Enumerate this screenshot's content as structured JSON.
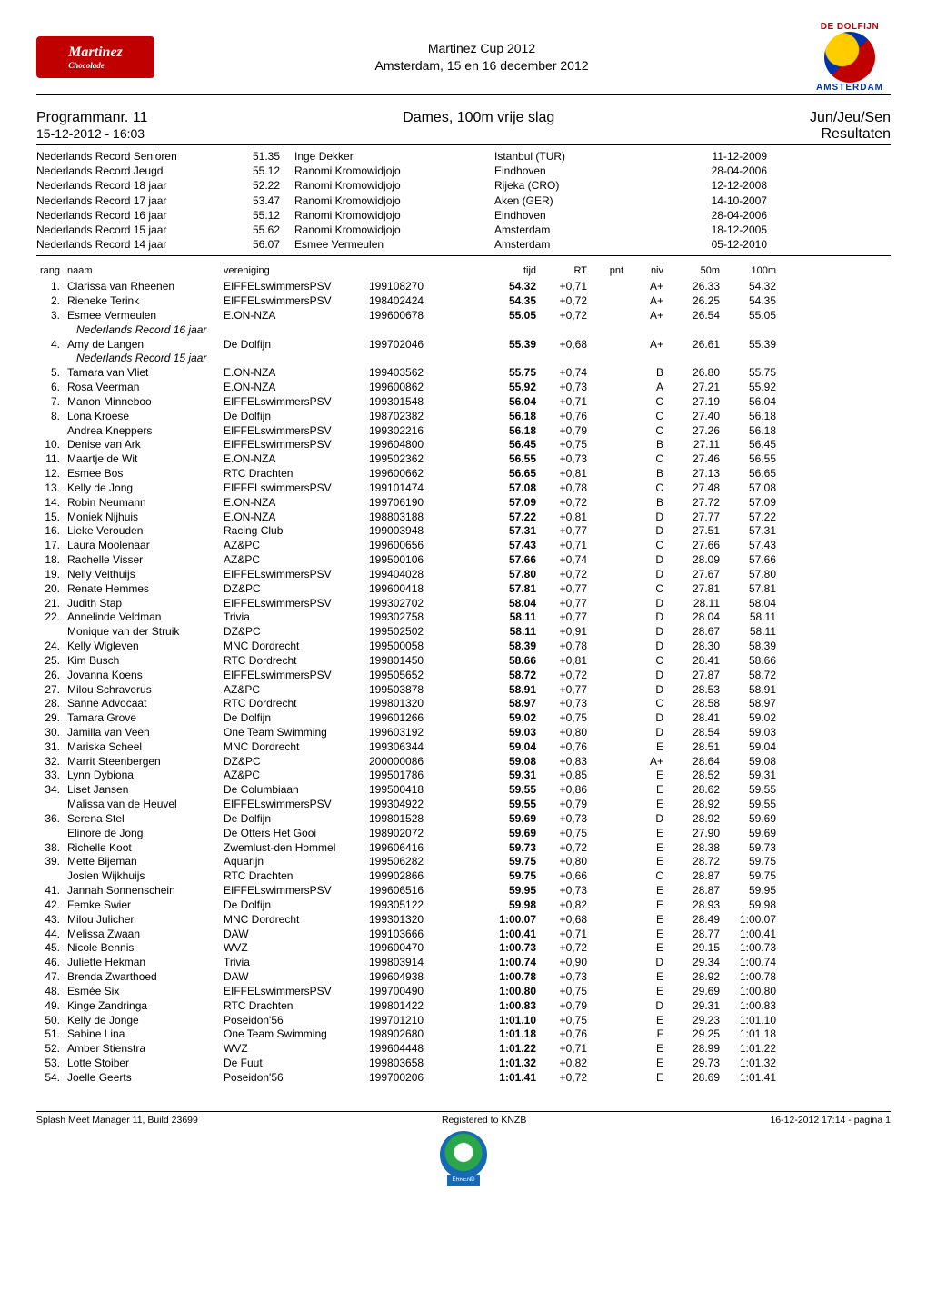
{
  "header": {
    "logo_left_main": "Martinez",
    "logo_left_sub": "Chocolade",
    "title_line1": "Martinez Cup 2012",
    "title_line2": "Amsterdam, 15 en 16 december 2012",
    "logo_right_top": "DE DOLFIJN",
    "logo_right_bottom": "AMSTERDAM"
  },
  "program": {
    "number_label": "Programmanr. 11",
    "datetime": "15-12-2012 - 16:03",
    "event_title": "Dames, 100m vrije slag",
    "category": "Jun/Jeu/Sen",
    "results_label": "Resultaten"
  },
  "records": [
    {
      "label": "Nederlands Record Senioren",
      "time": "51.35",
      "holder": "Inge Dekker",
      "place": "Istanbul (TUR)",
      "date": "11-12-2009"
    },
    {
      "label": "Nederlands Record Jeugd",
      "time": "55.12",
      "holder": "Ranomi Kromowidjojo",
      "place": "Eindhoven",
      "date": "28-04-2006"
    },
    {
      "label": "Nederlands Record 18 jaar",
      "time": "52.22",
      "holder": "Ranomi Kromowidjojo",
      "place": "Rijeka (CRO)",
      "date": "12-12-2008"
    },
    {
      "label": "Nederlands Record 17 jaar",
      "time": "53.47",
      "holder": "Ranomi Kromowidjojo",
      "place": "Aken (GER)",
      "date": "14-10-2007"
    },
    {
      "label": "Nederlands Record 16 jaar",
      "time": "55.12",
      "holder": "Ranomi Kromowidjojo",
      "place": "Eindhoven",
      "date": "28-04-2006"
    },
    {
      "label": "Nederlands Record 15 jaar",
      "time": "55.62",
      "holder": "Ranomi Kromowidjojo",
      "place": "Amsterdam",
      "date": "18-12-2005"
    },
    {
      "label": "Nederlands Record 14 jaar",
      "time": "56.07",
      "holder": "Esmee Vermeulen",
      "place": "Amsterdam",
      "date": "05-12-2010"
    }
  ],
  "columns": {
    "rang": "rang",
    "naam": "naam",
    "vereniging": "vereniging",
    "tijd": "tijd",
    "rt": "RT",
    "pnt": "pnt",
    "niv": "niv",
    "s50": "50m",
    "s100": "100m"
  },
  "rows": [
    {
      "rang": "1.",
      "naam": "Clarissa van Rheenen",
      "club": "EIFFELswimmersPSV",
      "id": "199108270",
      "tijd": "54.32",
      "rt": "+0,71",
      "pnt": "",
      "niv": "A+",
      "s50": "26.33",
      "s100": "54.32"
    },
    {
      "rang": "2.",
      "naam": "Rieneke Terink",
      "club": "EIFFELswimmersPSV",
      "id": "198402424",
      "tijd": "54.35",
      "rt": "+0,72",
      "pnt": "",
      "niv": "A+",
      "s50": "26.25",
      "s100": "54.35"
    },
    {
      "rang": "3.",
      "naam": "Esmee Vermeulen",
      "club": "E.ON-NZA",
      "id": "199600678",
      "tijd": "55.05",
      "rt": "+0,72",
      "pnt": "",
      "niv": "A+",
      "s50": "26.54",
      "s100": "55.05",
      "note": "Nederlands Record 16 jaar"
    },
    {
      "rang": "4.",
      "naam": "Amy de Langen",
      "club": "De Dolfijn",
      "id": "199702046",
      "tijd": "55.39",
      "rt": "+0,68",
      "pnt": "",
      "niv": "A+",
      "s50": "26.61",
      "s100": "55.39",
      "note": "Nederlands Record 15 jaar"
    },
    {
      "rang": "5.",
      "naam": "Tamara van Vliet",
      "club": "E.ON-NZA",
      "id": "199403562",
      "tijd": "55.75",
      "rt": "+0,74",
      "pnt": "",
      "niv": "B",
      "s50": "26.80",
      "s100": "55.75"
    },
    {
      "rang": "6.",
      "naam": "Rosa Veerman",
      "club": "E.ON-NZA",
      "id": "199600862",
      "tijd": "55.92",
      "rt": "+0,73",
      "pnt": "",
      "niv": "A",
      "s50": "27.21",
      "s100": "55.92"
    },
    {
      "rang": "7.",
      "naam": "Manon Minneboo",
      "club": "EIFFELswimmersPSV",
      "id": "199301548",
      "tijd": "56.04",
      "rt": "+0,71",
      "pnt": "",
      "niv": "C",
      "s50": "27.19",
      "s100": "56.04"
    },
    {
      "rang": "8.",
      "naam": "Lona Kroese",
      "club": "De Dolfijn",
      "id": "198702382",
      "tijd": "56.18",
      "rt": "+0,76",
      "pnt": "",
      "niv": "C",
      "s50": "27.40",
      "s100": "56.18"
    },
    {
      "rang": "",
      "naam": "Andrea Kneppers",
      "club": "EIFFELswimmersPSV",
      "id": "199302216",
      "tijd": "56.18",
      "rt": "+0,79",
      "pnt": "",
      "niv": "C",
      "s50": "27.26",
      "s100": "56.18"
    },
    {
      "rang": "10.",
      "naam": "Denise van Ark",
      "club": "EIFFELswimmersPSV",
      "id": "199604800",
      "tijd": "56.45",
      "rt": "+0,75",
      "pnt": "",
      "niv": "B",
      "s50": "27.11",
      "s100": "56.45"
    },
    {
      "rang": "11.",
      "naam": "Maartje de Wit",
      "club": "E.ON-NZA",
      "id": "199502362",
      "tijd": "56.55",
      "rt": "+0,73",
      "pnt": "",
      "niv": "C",
      "s50": "27.46",
      "s100": "56.55"
    },
    {
      "rang": "12.",
      "naam": "Esmee Bos",
      "club": "RTC Drachten",
      "id": "199600662",
      "tijd": "56.65",
      "rt": "+0,81",
      "pnt": "",
      "niv": "B",
      "s50": "27.13",
      "s100": "56.65"
    },
    {
      "rang": "13.",
      "naam": "Kelly de Jong",
      "club": "EIFFELswimmersPSV",
      "id": "199101474",
      "tijd": "57.08",
      "rt": "+0,78",
      "pnt": "",
      "niv": "C",
      "s50": "27.48",
      "s100": "57.08"
    },
    {
      "rang": "14.",
      "naam": "Robin Neumann",
      "club": "E.ON-NZA",
      "id": "199706190",
      "tijd": "57.09",
      "rt": "+0,72",
      "pnt": "",
      "niv": "B",
      "s50": "27.72",
      "s100": "57.09"
    },
    {
      "rang": "15.",
      "naam": "Moniek Nijhuis",
      "club": "E.ON-NZA",
      "id": "198803188",
      "tijd": "57.22",
      "rt": "+0,81",
      "pnt": "",
      "niv": "D",
      "s50": "27.77",
      "s100": "57.22"
    },
    {
      "rang": "16.",
      "naam": "Lieke Verouden",
      "club": "Racing Club",
      "id": "199003948",
      "tijd": "57.31",
      "rt": "+0,77",
      "pnt": "",
      "niv": "D",
      "s50": "27.51",
      "s100": "57.31"
    },
    {
      "rang": "17.",
      "naam": "Laura Moolenaar",
      "club": "AZ&PC",
      "id": "199600656",
      "tijd": "57.43",
      "rt": "+0,71",
      "pnt": "",
      "niv": "C",
      "s50": "27.66",
      "s100": "57.43"
    },
    {
      "rang": "18.",
      "naam": "Rachelle Visser",
      "club": "AZ&PC",
      "id": "199500106",
      "tijd": "57.66",
      "rt": "+0,74",
      "pnt": "",
      "niv": "D",
      "s50": "28.09",
      "s100": "57.66"
    },
    {
      "rang": "19.",
      "naam": "Nelly Velthuijs",
      "club": "EIFFELswimmersPSV",
      "id": "199404028",
      "tijd": "57.80",
      "rt": "+0,72",
      "pnt": "",
      "niv": "D",
      "s50": "27.67",
      "s100": "57.80"
    },
    {
      "rang": "20.",
      "naam": "Renate Hemmes",
      "club": "DZ&PC",
      "id": "199600418",
      "tijd": "57.81",
      "rt": "+0,77",
      "pnt": "",
      "niv": "C",
      "s50": "27.81",
      "s100": "57.81"
    },
    {
      "rang": "21.",
      "naam": "Judith Stap",
      "club": "EIFFELswimmersPSV",
      "id": "199302702",
      "tijd": "58.04",
      "rt": "+0,77",
      "pnt": "",
      "niv": "D",
      "s50": "28.11",
      "s100": "58.04"
    },
    {
      "rang": "22.",
      "naam": "Annelinde Veldman",
      "club": "Trivia",
      "id": "199302758",
      "tijd": "58.11",
      "rt": "+0,77",
      "pnt": "",
      "niv": "D",
      "s50": "28.04",
      "s100": "58.11"
    },
    {
      "rang": "",
      "naam": "Monique van der Struik",
      "club": "DZ&PC",
      "id": "199502502",
      "tijd": "58.11",
      "rt": "+0,91",
      "pnt": "",
      "niv": "D",
      "s50": "28.67",
      "s100": "58.11"
    },
    {
      "rang": "24.",
      "naam": "Kelly Wigleven",
      "club": "MNC Dordrecht",
      "id": "199500058",
      "tijd": "58.39",
      "rt": "+0,78",
      "pnt": "",
      "niv": "D",
      "s50": "28.30",
      "s100": "58.39"
    },
    {
      "rang": "25.",
      "naam": "Kim Busch",
      "club": "RTC Dordrecht",
      "id": "199801450",
      "tijd": "58.66",
      "rt": "+0,81",
      "pnt": "",
      "niv": "C",
      "s50": "28.41",
      "s100": "58.66"
    },
    {
      "rang": "26.",
      "naam": "Jovanna Koens",
      "club": "EIFFELswimmersPSV",
      "id": "199505652",
      "tijd": "58.72",
      "rt": "+0,72",
      "pnt": "",
      "niv": "D",
      "s50": "27.87",
      "s100": "58.72"
    },
    {
      "rang": "27.",
      "naam": "Milou Schraverus",
      "club": "AZ&PC",
      "id": "199503878",
      "tijd": "58.91",
      "rt": "+0,77",
      "pnt": "",
      "niv": "D",
      "s50": "28.53",
      "s100": "58.91"
    },
    {
      "rang": "28.",
      "naam": "Sanne Advocaat",
      "club": "RTC Dordrecht",
      "id": "199801320",
      "tijd": "58.97",
      "rt": "+0,73",
      "pnt": "",
      "niv": "C",
      "s50": "28.58",
      "s100": "58.97"
    },
    {
      "rang": "29.",
      "naam": "Tamara Grove",
      "club": "De Dolfijn",
      "id": "199601266",
      "tijd": "59.02",
      "rt": "+0,75",
      "pnt": "",
      "niv": "D",
      "s50": "28.41",
      "s100": "59.02"
    },
    {
      "rang": "30.",
      "naam": "Jamilla van Veen",
      "club": "One Team Swimming",
      "id": "199603192",
      "tijd": "59.03",
      "rt": "+0,80",
      "pnt": "",
      "niv": "D",
      "s50": "28.54",
      "s100": "59.03"
    },
    {
      "rang": "31.",
      "naam": "Mariska Scheel",
      "club": "MNC Dordrecht",
      "id": "199306344",
      "tijd": "59.04",
      "rt": "+0,76",
      "pnt": "",
      "niv": "E",
      "s50": "28.51",
      "s100": "59.04"
    },
    {
      "rang": "32.",
      "naam": "Marrit Steenbergen",
      "club": "DZ&PC",
      "id": "200000086",
      "tijd": "59.08",
      "rt": "+0,83",
      "pnt": "",
      "niv": "A+",
      "s50": "28.64",
      "s100": "59.08"
    },
    {
      "rang": "33.",
      "naam": "Lynn Dybiona",
      "club": "AZ&PC",
      "id": "199501786",
      "tijd": "59.31",
      "rt": "+0,85",
      "pnt": "",
      "niv": "E",
      "s50": "28.52",
      "s100": "59.31"
    },
    {
      "rang": "34.",
      "naam": "Liset Jansen",
      "club": "De Columbiaan",
      "id": "199500418",
      "tijd": "59.55",
      "rt": "+0,86",
      "pnt": "",
      "niv": "E",
      "s50": "28.62",
      "s100": "59.55"
    },
    {
      "rang": "",
      "naam": "Malissa van de Heuvel",
      "club": "EIFFELswimmersPSV",
      "id": "199304922",
      "tijd": "59.55",
      "rt": "+0,79",
      "pnt": "",
      "niv": "E",
      "s50": "28.92",
      "s100": "59.55"
    },
    {
      "rang": "36.",
      "naam": "Serena Stel",
      "club": "De Dolfijn",
      "id": "199801528",
      "tijd": "59.69",
      "rt": "+0,73",
      "pnt": "",
      "niv": "D",
      "s50": "28.92",
      "s100": "59.69"
    },
    {
      "rang": "",
      "naam": "Elinore de Jong",
      "club": "De Otters Het Gooi",
      "id": "198902072",
      "tijd": "59.69",
      "rt": "+0,75",
      "pnt": "",
      "niv": "E",
      "s50": "27.90",
      "s100": "59.69"
    },
    {
      "rang": "38.",
      "naam": "Richelle Koot",
      "club": "Zwemlust-den Hommel",
      "id": "199606416",
      "tijd": "59.73",
      "rt": "+0,72",
      "pnt": "",
      "niv": "E",
      "s50": "28.38",
      "s100": "59.73"
    },
    {
      "rang": "39.",
      "naam": "Mette Bijeman",
      "club": "Aquarijn",
      "id": "199506282",
      "tijd": "59.75",
      "rt": "+0,80",
      "pnt": "",
      "niv": "E",
      "s50": "28.72",
      "s100": "59.75"
    },
    {
      "rang": "",
      "naam": "Josien Wijkhuijs",
      "club": "RTC Drachten",
      "id": "199902866",
      "tijd": "59.75",
      "rt": "+0,66",
      "pnt": "",
      "niv": "C",
      "s50": "28.87",
      "s100": "59.75"
    },
    {
      "rang": "41.",
      "naam": "Jannah Sonnenschein",
      "club": "EIFFELswimmersPSV",
      "id": "199606516",
      "tijd": "59.95",
      "rt": "+0,73",
      "pnt": "",
      "niv": "E",
      "s50": "28.87",
      "s100": "59.95"
    },
    {
      "rang": "42.",
      "naam": "Femke Swier",
      "club": "De Dolfijn",
      "id": "199305122",
      "tijd": "59.98",
      "rt": "+0,82",
      "pnt": "",
      "niv": "E",
      "s50": "28.93",
      "s100": "59.98"
    },
    {
      "rang": "43.",
      "naam": "Milou Julicher",
      "club": "MNC Dordrecht",
      "id": "199301320",
      "tijd": "1:00.07",
      "rt": "+0,68",
      "pnt": "",
      "niv": "E",
      "s50": "28.49",
      "s100": "1:00.07"
    },
    {
      "rang": "44.",
      "naam": "Melissa Zwaan",
      "club": "DAW",
      "id": "199103666",
      "tijd": "1:00.41",
      "rt": "+0,71",
      "pnt": "",
      "niv": "E",
      "s50": "28.77",
      "s100": "1:00.41"
    },
    {
      "rang": "45.",
      "naam": "Nicole Bennis",
      "club": "WVZ",
      "id": "199600470",
      "tijd": "1:00.73",
      "rt": "+0,72",
      "pnt": "",
      "niv": "E",
      "s50": "29.15",
      "s100": "1:00.73"
    },
    {
      "rang": "46.",
      "naam": "Juliette Hekman",
      "club": "Trivia",
      "id": "199803914",
      "tijd": "1:00.74",
      "rt": "+0,90",
      "pnt": "",
      "niv": "D",
      "s50": "29.34",
      "s100": "1:00.74"
    },
    {
      "rang": "47.",
      "naam": "Brenda Zwarthoed",
      "club": "DAW",
      "id": "199604938",
      "tijd": "1:00.78",
      "rt": "+0,73",
      "pnt": "",
      "niv": "E",
      "s50": "28.92",
      "s100": "1:00.78"
    },
    {
      "rang": "48.",
      "naam": "Esmée Six",
      "club": "EIFFELswimmersPSV",
      "id": "199700490",
      "tijd": "1:00.80",
      "rt": "+0,75",
      "pnt": "",
      "niv": "E",
      "s50": "29.69",
      "s100": "1:00.80"
    },
    {
      "rang": "49.",
      "naam": "Kinge Zandringa",
      "club": "RTC Drachten",
      "id": "199801422",
      "tijd": "1:00.83",
      "rt": "+0,79",
      "pnt": "",
      "niv": "D",
      "s50": "29.31",
      "s100": "1:00.83"
    },
    {
      "rang": "50.",
      "naam": "Kelly de Jonge",
      "club": "Poseidon'56",
      "id": "199701210",
      "tijd": "1:01.10",
      "rt": "+0,75",
      "pnt": "",
      "niv": "E",
      "s50": "29.23",
      "s100": "1:01.10"
    },
    {
      "rang": "51.",
      "naam": "Sabine Lina",
      "club": "One Team Swimming",
      "id": "198902680",
      "tijd": "1:01.18",
      "rt": "+0,76",
      "pnt": "",
      "niv": "F",
      "s50": "29.25",
      "s100": "1:01.18"
    },
    {
      "rang": "52.",
      "naam": "Amber Stienstra",
      "club": "WVZ",
      "id": "199604448",
      "tijd": "1:01.22",
      "rt": "+0,71",
      "pnt": "",
      "niv": "E",
      "s50": "28.99",
      "s100": "1:01.22"
    },
    {
      "rang": "53.",
      "naam": "Lotte Stoiber",
      "club": "De Fuut",
      "id": "199803658",
      "tijd": "1:01.32",
      "rt": "+0,82",
      "pnt": "",
      "niv": "E",
      "s50": "29.73",
      "s100": "1:01.32"
    },
    {
      "rang": "54.",
      "naam": "Joelle Geerts",
      "club": "Poseidon'56",
      "id": "199700206",
      "tijd": "1:01.41",
      "rt": "+0,72",
      "pnt": "",
      "niv": "E",
      "s50": "28.69",
      "s100": "1:01.41"
    }
  ],
  "footer": {
    "left": "Splash Meet Manager 11, Build 23699",
    "center": "Registered to KNZB",
    "right": "16-12-2012 17:14 - pagina 1",
    "badge": "ERKEND"
  }
}
